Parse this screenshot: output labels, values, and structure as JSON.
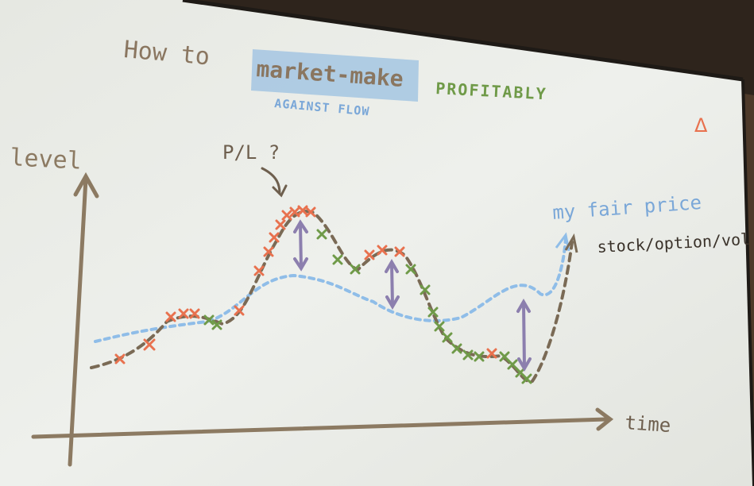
{
  "slide": {
    "title_part1": "How to",
    "title_highlight": "market-make",
    "title_part2": "PROFITABLY",
    "subtitle": "AGAINST FLOW",
    "logo_glyph": "Δ",
    "y_label": "level",
    "x_label": "time",
    "pl_label": "P/L ?",
    "fair_price_label": "my fair price",
    "stock_label": "stock/option/vol"
  },
  "colors": {
    "screen": "#eceeea",
    "axis": "#8c7a62",
    "title": "#8a7660",
    "highlight": "#a9c8e2",
    "green": "#6f9a48",
    "blue_text": "#7aa7d8",
    "fair_line": "#8fbde8",
    "price_line": "#7a6a55",
    "sell_marker": "#e8714e",
    "buy_marker": "#6f9a48",
    "arrow": "#8c7fae",
    "logo": "#e8714e"
  }
}
